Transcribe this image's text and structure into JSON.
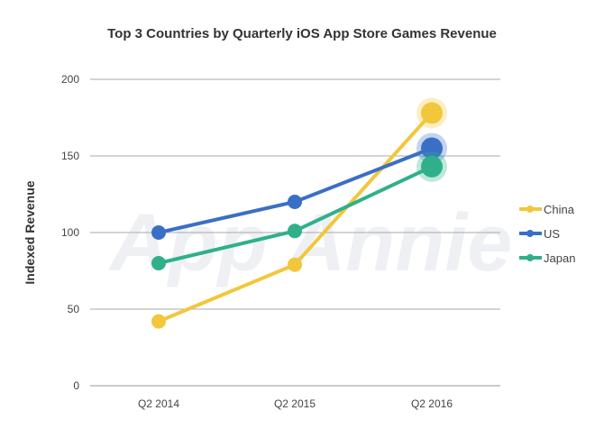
{
  "chart_data": {
    "type": "line",
    "title": "Top 3 Countries by Quarterly iOS App Store Games Revenue",
    "xlabel": "",
    "ylabel": "Indexed Revenue",
    "categories": [
      "Q2 2014",
      "Q2 2015",
      "Q2 2016"
    ],
    "ylim": [
      0,
      200
    ],
    "yticks": [
      0,
      50,
      100,
      150,
      200
    ],
    "grid": true,
    "legend_position": "right",
    "watermark": "App Annie",
    "series": [
      {
        "name": "China",
        "color": "#f2c73c",
        "values": [
          42,
          79,
          178
        ]
      },
      {
        "name": "US",
        "color": "#3a6fc6",
        "values": [
          100,
          120,
          155
        ]
      },
      {
        "name": "Japan",
        "color": "#2fb08a",
        "values": [
          80,
          101,
          143
        ]
      }
    ]
  }
}
